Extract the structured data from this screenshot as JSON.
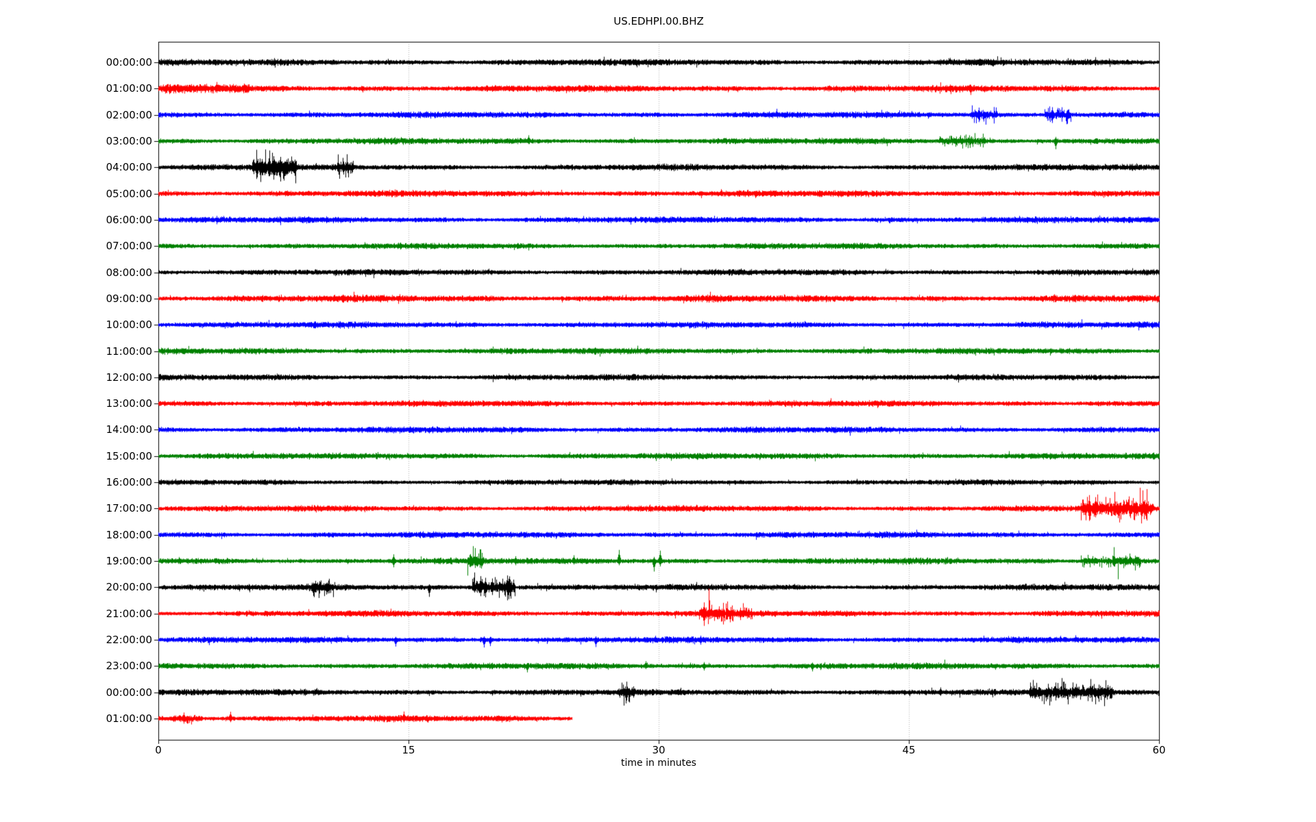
{
  "title": "US.EDHPI.00.BHZ",
  "x_axis": {
    "label": "time in minutes",
    "ticks": [
      "0",
      "15",
      "30",
      "45",
      "60"
    ],
    "tick_values": [
      0,
      15,
      30,
      45,
      60
    ]
  },
  "colors": {
    "background": "#ffffff",
    "axis": "#000000",
    "grid": "#b0b0b0",
    "trace_cycle": [
      "#000000",
      "#ff0000",
      "#0000ff",
      "#008000"
    ]
  },
  "chart_data": {
    "type": "line",
    "subtype": "seismogram-dayplot",
    "title": "US.EDHPI.00.BHZ",
    "xlabel": "time in minutes",
    "xlim": [
      0,
      60
    ],
    "x_ticks": [
      0,
      15,
      30,
      45,
      60
    ],
    "gridlines_minutes": [
      15,
      30,
      45
    ],
    "grid_style": "dotted-vertical",
    "legend": "none",
    "rows_are_hours": true,
    "rows": [
      {
        "label": "00:00:00",
        "color": "#000000",
        "duration_min": 60,
        "amp_scale": 1.05,
        "bursts": [],
        "spikes": []
      },
      {
        "label": "01:00:00",
        "color": "#ff0000",
        "duration_min": 60,
        "amp_scale": 1.1,
        "bursts": [
          {
            "s": 0.3,
            "e": 5.5,
            "a": 1.45,
            "spiky": false
          }
        ],
        "spikes": [
          {
            "t": 3.5,
            "u": 2.3,
            "d": 1.4
          },
          {
            "t": 48.7,
            "u": 1.2,
            "d": 2.2
          }
        ]
      },
      {
        "label": "02:00:00",
        "color": "#0000ff",
        "duration_min": 60,
        "amp_scale": 1.0,
        "bursts": [
          {
            "s": 48.7,
            "e": 50.3,
            "a": 2.0,
            "spiky": true
          },
          {
            "s": 53.1,
            "e": 54.7,
            "a": 2.6,
            "spiky": true
          }
        ],
        "spikes": [
          {
            "t": 49.2,
            "u": 2.8,
            "d": 2.8
          },
          {
            "t": 53.6,
            "u": 3.0,
            "d": 3.2
          }
        ]
      },
      {
        "label": "03:00:00",
        "color": "#008000",
        "duration_min": 60,
        "amp_scale": 1.0,
        "bursts": [
          {
            "s": 46.8,
            "e": 49.6,
            "a": 1.7,
            "spiky": true
          }
        ],
        "spikes": [
          {
            "t": 22.2,
            "u": 2.2,
            "d": 1.0
          },
          {
            "t": 53.8,
            "u": 1.5,
            "d": 3.2
          }
        ]
      },
      {
        "label": "04:00:00",
        "color": "#000000",
        "duration_min": 60,
        "amp_scale": 1.0,
        "bursts": [
          {
            "s": 5.6,
            "e": 8.3,
            "a": 3.2,
            "spiky": true
          },
          {
            "s": 10.7,
            "e": 11.7,
            "a": 1.9,
            "spiky": true
          }
        ],
        "spikes": [
          {
            "t": 5.9,
            "u": 2.5,
            "d": 4.0
          },
          {
            "t": 6.1,
            "u": 3.5,
            "d": 3.0
          },
          {
            "t": 6.9,
            "u": 4.5,
            "d": 5.0
          },
          {
            "t": 7.3,
            "u": 4.2,
            "d": 3.8
          },
          {
            "t": 11.1,
            "u": 2.2,
            "d": 2.8
          }
        ]
      },
      {
        "label": "05:00:00",
        "color": "#ff0000",
        "duration_min": 60,
        "amp_scale": 1.05,
        "bursts": [],
        "spikes": []
      },
      {
        "label": "06:00:00",
        "color": "#0000ff",
        "duration_min": 60,
        "amp_scale": 1.0,
        "bursts": [],
        "spikes": []
      },
      {
        "label": "07:00:00",
        "color": "#008000",
        "duration_min": 60,
        "amp_scale": 0.95,
        "bursts": [],
        "spikes": []
      },
      {
        "label": "08:00:00",
        "color": "#000000",
        "duration_min": 60,
        "amp_scale": 0.95,
        "bursts": [],
        "spikes": []
      },
      {
        "label": "09:00:00",
        "color": "#ff0000",
        "duration_min": 60,
        "amp_scale": 1.15,
        "bursts": [],
        "spikes": []
      },
      {
        "label": "10:00:00",
        "color": "#0000ff",
        "duration_min": 60,
        "amp_scale": 1.0,
        "bursts": [],
        "spikes": []
      },
      {
        "label": "11:00:00",
        "color": "#008000",
        "duration_min": 60,
        "amp_scale": 1.0,
        "bursts": [],
        "spikes": []
      },
      {
        "label": "12:00:00",
        "color": "#000000",
        "duration_min": 60,
        "amp_scale": 0.95,
        "bursts": [],
        "spikes": []
      },
      {
        "label": "13:00:00",
        "color": "#ff0000",
        "duration_min": 60,
        "amp_scale": 1.0,
        "bursts": [],
        "spikes": []
      },
      {
        "label": "14:00:00",
        "color": "#0000ff",
        "duration_min": 60,
        "amp_scale": 1.0,
        "bursts": [],
        "spikes": []
      },
      {
        "label": "15:00:00",
        "color": "#008000",
        "duration_min": 60,
        "amp_scale": 1.0,
        "bursts": [],
        "spikes": []
      },
      {
        "label": "16:00:00",
        "color": "#000000",
        "duration_min": 60,
        "amp_scale": 0.85,
        "bursts": [],
        "spikes": []
      },
      {
        "label": "17:00:00",
        "color": "#ff0000",
        "duration_min": 60,
        "amp_scale": 1.0,
        "bursts": [
          {
            "s": 55.3,
            "e": 59.6,
            "a": 2.4,
            "spiky": true
          }
        ],
        "spikes": [
          {
            "t": 55.8,
            "u": 5.5,
            "d": 5.0
          },
          {
            "t": 56.3,
            "u": 2.5,
            "d": 2.0
          },
          {
            "t": 57.9,
            "u": 2.8,
            "d": 2.2
          },
          {
            "t": 58.6,
            "u": 2.5,
            "d": 3.0
          }
        ]
      },
      {
        "label": "18:00:00",
        "color": "#0000ff",
        "duration_min": 60,
        "amp_scale": 1.0,
        "bursts": [],
        "spikes": []
      },
      {
        "label": "19:00:00",
        "color": "#008000",
        "duration_min": 60,
        "amp_scale": 1.0,
        "bursts": [
          {
            "s": 18.5,
            "e": 19.5,
            "a": 2.2,
            "spiky": true
          },
          {
            "s": 55.3,
            "e": 58.9,
            "a": 2.0,
            "spiky": true
          }
        ],
        "spikes": [
          {
            "t": 14.1,
            "u": 2.6,
            "d": 2.4
          },
          {
            "t": 19.0,
            "u": 3.0,
            "d": 2.5
          },
          {
            "t": 21.4,
            "u": 1.8,
            "d": 1.5
          },
          {
            "t": 24.9,
            "u": 2.2,
            "d": 1.2
          },
          {
            "t": 27.6,
            "u": 4.5,
            "d": 1.5
          },
          {
            "t": 29.7,
            "u": 1.5,
            "d": 4.2
          },
          {
            "t": 30.1,
            "u": 4.2,
            "d": 2.0
          },
          {
            "t": 57.3,
            "u": 3.2,
            "d": 2.0
          }
        ]
      },
      {
        "label": "20:00:00",
        "color": "#000000",
        "duration_min": 60,
        "amp_scale": 1.0,
        "bursts": [
          {
            "s": 9.2,
            "e": 10.5,
            "a": 1.8,
            "spiky": true
          },
          {
            "s": 18.8,
            "e": 21.4,
            "a": 3.4,
            "spiky": true
          }
        ],
        "spikes": [
          {
            "t": 9.4,
            "u": 2.5,
            "d": 2.0
          },
          {
            "t": 16.25,
            "u": 1.0,
            "d": 3.8
          },
          {
            "t": 19.3,
            "u": 4.5,
            "d": 3.5
          },
          {
            "t": 19.6,
            "u": 3.8,
            "d": 4.0
          },
          {
            "t": 20.0,
            "u": 3.5,
            "d": 3.0
          },
          {
            "t": 20.9,
            "u": 4.8,
            "d": 3.2
          },
          {
            "t": 21.1,
            "u": 3.0,
            "d": 3.5
          }
        ]
      },
      {
        "label": "21:00:00",
        "color": "#ff0000",
        "duration_min": 60,
        "amp_scale": 1.0,
        "bursts": [
          {
            "s": 32.4,
            "e": 35.7,
            "a": 2.2,
            "spiky": true,
            "decay": true
          }
        ],
        "spikes": [
          {
            "t": 32.7,
            "u": 4.5,
            "d": 5.0
          },
          {
            "t": 33.6,
            "u": 2.8,
            "d": 2.0
          },
          {
            "t": 34.1,
            "u": 3.0,
            "d": 2.2
          },
          {
            "t": 34.9,
            "u": 2.2,
            "d": 2.5
          },
          {
            "t": 35.4,
            "u": 2.0,
            "d": 1.5
          }
        ]
      },
      {
        "label": "22:00:00",
        "color": "#0000ff",
        "duration_min": 60,
        "amp_scale": 1.0,
        "bursts": [
          {
            "s": 19.2,
            "e": 20.2,
            "a": 1.5,
            "spiky": false
          }
        ],
        "spikes": [
          {
            "t": 14.2,
            "u": 1.0,
            "d": 2.6
          },
          {
            "t": 19.5,
            "u": 1.2,
            "d": 3.0
          },
          {
            "t": 19.9,
            "u": 1.0,
            "d": 2.4
          },
          {
            "t": 26.2,
            "u": 1.2,
            "d": 2.8
          },
          {
            "t": 32.5,
            "u": 1.5,
            "d": 1.8
          }
        ]
      },
      {
        "label": "23:00:00",
        "color": "#008000",
        "duration_min": 60,
        "amp_scale": 1.0,
        "bursts": [],
        "spikes": [
          {
            "t": 22.1,
            "u": 1.0,
            "d": 2.4
          },
          {
            "t": 29.2,
            "u": 1.8,
            "d": 1.0
          },
          {
            "t": 32.7,
            "u": 1.4,
            "d": 1.6
          },
          {
            "t": 39.2,
            "u": 1.2,
            "d": 2.0
          }
        ]
      },
      {
        "label": "00:00:00",
        "color": "#000000",
        "duration_min": 60,
        "amp_scale": 1.0,
        "bursts": [
          {
            "s": 27.6,
            "e": 28.6,
            "a": 1.8,
            "spiky": true
          },
          {
            "s": 52.2,
            "e": 57.2,
            "a": 2.0,
            "spiky": true
          }
        ],
        "spikes": [
          {
            "t": 28.0,
            "u": 2.2,
            "d": 2.0
          },
          {
            "t": 46.9,
            "u": 1.8,
            "d": 1.2
          },
          {
            "t": 52.5,
            "u": 2.5,
            "d": 2.0
          },
          {
            "t": 53.2,
            "u": 1.5,
            "d": 3.5
          },
          {
            "t": 53.9,
            "u": 2.2,
            "d": 2.0
          },
          {
            "t": 56.9,
            "u": 2.8,
            "d": 1.5
          }
        ]
      },
      {
        "label": "01:00:00",
        "color": "#ff0000",
        "duration_min": 24.8,
        "amp_scale": 1.05,
        "bursts": [
          {
            "s": 0.8,
            "e": 2.6,
            "a": 1.6,
            "spiky": true
          },
          {
            "s": 4.0,
            "e": 4.6,
            "a": 1.4,
            "spiky": false
          }
        ],
        "spikes": [
          {
            "t": 1.5,
            "u": 2.2,
            "d": 1.8
          },
          {
            "t": 4.3,
            "u": 2.5,
            "d": 1.2
          },
          {
            "t": 14.7,
            "u": 2.6,
            "d": 1.2
          }
        ]
      }
    ]
  }
}
